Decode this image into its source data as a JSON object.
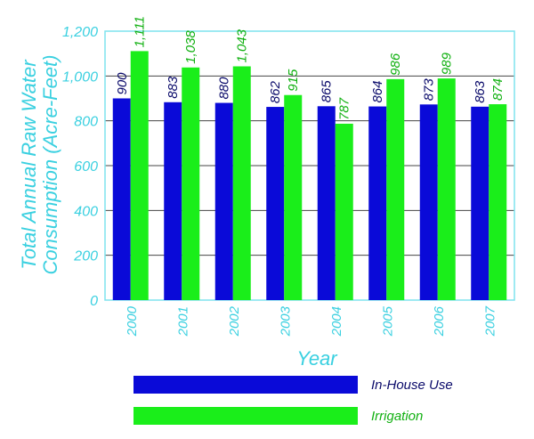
{
  "colors": {
    "in_house": "#0a0ad8",
    "irrigation": "#1aee1a",
    "axis_text": "#3ad0e0",
    "frame": "#7fe3ee",
    "grid": "#444444",
    "in_house_label": "#0a0a6a",
    "irrigation_label": "#10b010"
  },
  "chart_data": {
    "type": "bar",
    "categories": [
      "2000",
      "2001",
      "2002",
      "2003",
      "2004",
      "2005",
      "2006",
      "2007"
    ],
    "series": [
      {
        "name": "In-House Use",
        "values": [
          900,
          883,
          880,
          862,
          865,
          864,
          873,
          863
        ]
      },
      {
        "name": "Irrigation",
        "values": [
          1111,
          1038,
          1043,
          915,
          787,
          986,
          989,
          874
        ]
      }
    ],
    "data_labels": {
      "in_house": [
        "900",
        "883",
        "880",
        "862",
        "865",
        "864",
        "873",
        "863"
      ],
      "irrigation": [
        "1,111",
        "1,038",
        "1,043",
        "915",
        "787",
        "986",
        "989",
        "874"
      ]
    },
    "y_ticks": [
      "0",
      "200",
      "400",
      "600",
      "800",
      "1,000",
      "1,200"
    ],
    "y_tick_values": [
      0,
      200,
      400,
      600,
      800,
      1000,
      1200
    ],
    "ylim": [
      0,
      1200
    ],
    "ylabel_line1": "Total Annual Raw Water",
    "ylabel_line2": "Consumption (Acre-Feet)",
    "xlabel": "Year",
    "grid": true,
    "legend_position": "bottom"
  },
  "legend": [
    {
      "label": "In-House Use"
    },
    {
      "label": "Irrigation"
    }
  ]
}
